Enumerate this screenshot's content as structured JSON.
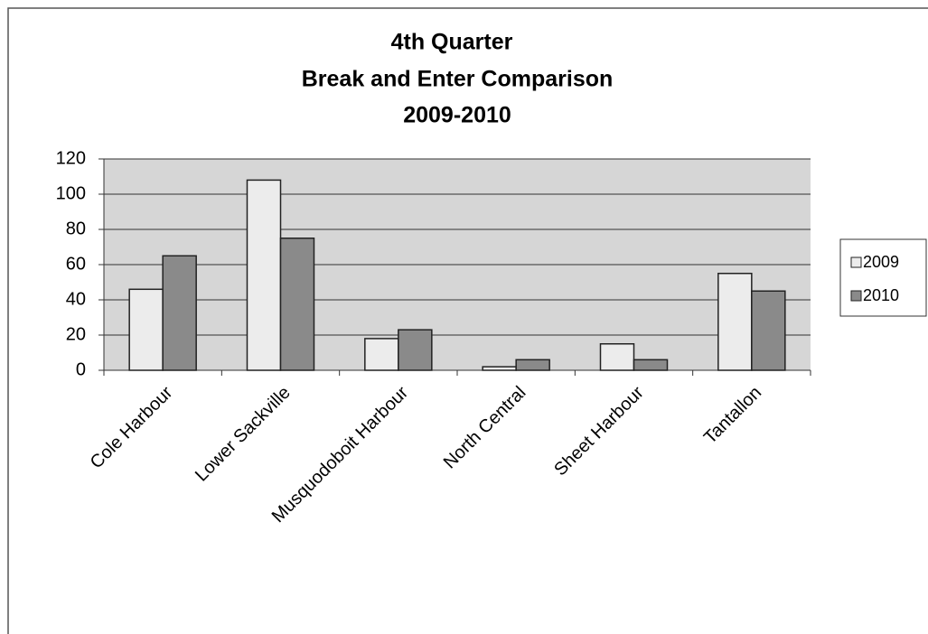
{
  "chart_data": {
    "type": "bar",
    "title": [
      "4th Quarter",
      "Break and Enter Comparison",
      "2009-2010"
    ],
    "categories": [
      "Cole Harbour",
      "Lower Sackville",
      "Musquodoboit Harbour",
      "North Central",
      "Sheet Harbour",
      "Tantallon"
    ],
    "series": [
      {
        "name": "2009",
        "color": "#ececec",
        "values": [
          46,
          108,
          18,
          2,
          15,
          55
        ]
      },
      {
        "name": "2010",
        "color": "#8a8a8a",
        "values": [
          65,
          75,
          23,
          6,
          6,
          45
        ]
      }
    ],
    "ylim": [
      0,
      120
    ],
    "yticks": [
      0,
      20,
      40,
      60,
      80,
      100,
      120
    ],
    "grid": true,
    "legend": "right"
  }
}
